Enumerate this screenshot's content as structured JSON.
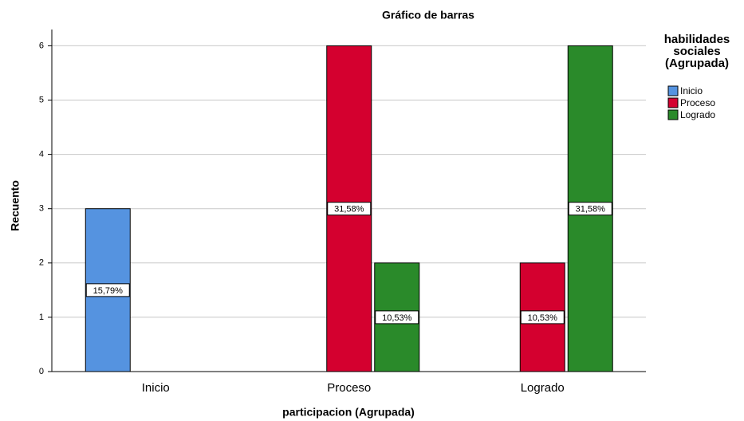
{
  "chart_data": {
    "type": "bar",
    "title": "Gráfico de barras",
    "xlabel": "participacion (Agrupada)",
    "ylabel": "Recuento",
    "categories": [
      "Inicio",
      "Proceso",
      "Logrado"
    ],
    "legend_title": "habilidades sociales (Agrupada)",
    "series": [
      {
        "name": "Inicio",
        "color": "#5593e0",
        "values": [
          3,
          0,
          0
        ],
        "labels": [
          "15,79%",
          null,
          null
        ]
      },
      {
        "name": "Proceso",
        "color": "#d4002f",
        "values": [
          0,
          6,
          2
        ],
        "labels": [
          null,
          "31,58%",
          "10,53%"
        ]
      },
      {
        "name": "Logrado",
        "color": "#2a8a2a",
        "values": [
          0,
          2,
          6
        ],
        "labels": [
          null,
          "10,53%",
          "31,58%"
        ]
      }
    ],
    "ylim": [
      0,
      6.3
    ],
    "yticks": [
      0,
      1,
      2,
      3,
      4,
      5,
      6
    ],
    "grid": true,
    "legend": "right"
  }
}
